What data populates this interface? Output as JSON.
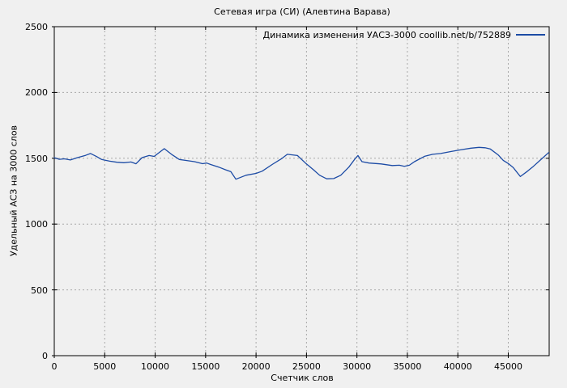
{
  "title": "Сетевая игра (СИ) (Алевтина Варава)",
  "colors": {
    "background": "#f0f0f0",
    "axis": "#000000",
    "grid": "#a8a8a8",
    "line": "#1c4ba5",
    "text": "#000000"
  },
  "chart_data": {
    "type": "line",
    "title": "Сетевая игра (СИ) (Алевтина Варава)",
    "legend": "Динамика изменения УАСЗ-3000 coollib.net/b/752889",
    "legend_position": "top-right",
    "xlabel": "Счетчик слов",
    "ylabel": "Удельный АСЗ на 3000 слов",
    "grid": true,
    "xlim": [
      0,
      49055
    ],
    "ylim": [
      0,
      2500
    ],
    "xticks": [
      0,
      5000,
      10000,
      15000,
      20000,
      25000,
      30000,
      35000,
      40000,
      45000
    ],
    "xtick_labels": [
      "0",
      "5000",
      "10000",
      "15000",
      "20000",
      "25000",
      "30000",
      "35000",
      "40000",
      "45000"
    ],
    "yticks": [
      0,
      500,
      1000,
      1500,
      2000,
      2500
    ],
    "ytick_labels": [
      "0",
      "500",
      "1000",
      "1500",
      "2000",
      "2500"
    ],
    "series": [
      {
        "name": "Динамика изменения УАСЗ-3000 coollib.net/b/752889",
        "color": "#1c4ba5",
        "x": [
          0,
          500,
          1000,
          1600,
          2300,
          3100,
          3600,
          4200,
          4700,
          5500,
          6200,
          6900,
          7600,
          8100,
          8700,
          9400,
          9900,
          10900,
          11700,
          12400,
          13000,
          13900,
          14700,
          15100,
          15500,
          16300,
          17000,
          17500,
          18000,
          19000,
          20000,
          20600,
          21600,
          22500,
          23100,
          24100,
          24900,
          25700,
          26300,
          27000,
          27700,
          28400,
          29200,
          29800,
          30100,
          30500,
          31200,
          32400,
          33500,
          34200,
          34700,
          35200,
          35700,
          36700,
          37500,
          38300,
          39300,
          40200,
          41300,
          42100,
          42700,
          43200,
          44000,
          44500,
          45000,
          45500,
          46200,
          46900,
          47500,
          48300,
          49000
        ],
        "y": [
          1505,
          1492,
          1496,
          1487,
          1505,
          1522,
          1536,
          1513,
          1491,
          1478,
          1470,
          1466,
          1472,
          1458,
          1505,
          1521,
          1514,
          1573,
          1526,
          1491,
          1484,
          1474,
          1459,
          1464,
          1453,
          1433,
          1412,
          1398,
          1341,
          1371,
          1385,
          1402,
          1453,
          1495,
          1530,
          1521,
          1464,
          1412,
          1371,
          1344,
          1346,
          1371,
          1433,
          1495,
          1521,
          1474,
          1464,
          1457,
          1445,
          1447,
          1439,
          1447,
          1474,
          1515,
          1530,
          1536,
          1551,
          1563,
          1577,
          1583,
          1580,
          1571,
          1526,
          1484,
          1460,
          1429,
          1361,
          1402,
          1439,
          1495,
          1543
        ]
      }
    ]
  }
}
